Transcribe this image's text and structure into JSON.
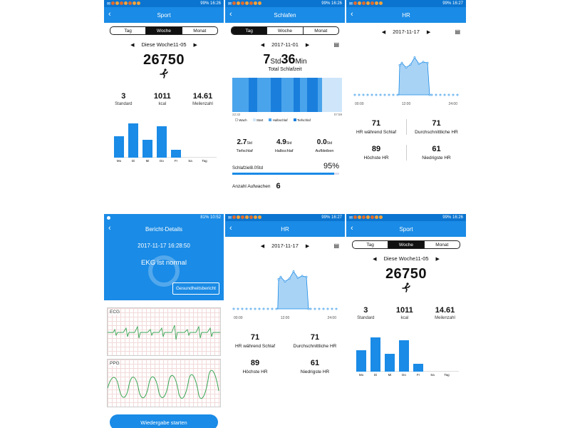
{
  "status": {
    "s1": {
      "battery": "99%",
      "time": "16:26"
    },
    "s2": {
      "battery": "99%",
      "time": "16:26"
    },
    "s3": {
      "battery": "99%",
      "time": "16:27"
    },
    "s4": {
      "battery": "81%",
      "time": "10:52"
    },
    "s5": {
      "battery": "99%",
      "time": "16:27"
    },
    "s6": {
      "battery": "99%",
      "time": "16:26"
    }
  },
  "sport": {
    "title": "Sport",
    "tabs": [
      "Tag",
      "Woche",
      "Monat"
    ],
    "date": "Diese Woche11-05",
    "steps": "26750",
    "stats": [
      {
        "value": "3",
        "label": "Standard"
      },
      {
        "value": "1011",
        "label": "kcal"
      },
      {
        "value": "14.61",
        "label": "Meilenzahl"
      }
    ],
    "week": {
      "days": [
        "Mo",
        "Di",
        "Mi",
        "Do",
        "Fr",
        "Sa",
        "Tag"
      ],
      "values": [
        0.62,
        1.0,
        0.53,
        0.92,
        0.22,
        0,
        0
      ]
    }
  },
  "sleep": {
    "title": "Schlafen",
    "tabs": [
      "Tag",
      "Woche",
      "Monat"
    ],
    "date": "2017-11-01",
    "hours": "7",
    "hours_unit": "Std",
    "minutes": "36",
    "minutes_unit": "Min",
    "total_label": "Total Schlafzeit",
    "time_start": "22:32",
    "time_end": "07:59",
    "legend": [
      "Wach",
      "Start",
      "Halbschlaf",
      "Tiefschlaf"
    ],
    "stats": [
      {
        "value": "2.7",
        "unit": "Std",
        "label": "Tiefschlaf"
      },
      {
        "value": "4.9",
        "unit": "Std",
        "label": "Halbschlaf"
      },
      {
        "value": "0.0",
        "unit": "Std",
        "label": "Aufbleiben"
      }
    ],
    "goal_label": "Schlafziel8.0Std",
    "goal_percent": "95%",
    "goal_progress": 0.95,
    "wake_label": "Anzahl Aufwachen",
    "wake_count": "6"
  },
  "hr": {
    "title": "HR",
    "date": "2017-11-17",
    "times": [
      "00:00",
      "12:00",
      "24:00"
    ],
    "stats": [
      {
        "value": "71",
        "label": "HR während Schlaf"
      },
      {
        "value": "71",
        "label": "Durchschnittliche HR"
      },
      {
        "value": "89",
        "label": "Höchste HR"
      },
      {
        "value": "61",
        "label": "Niedrigste HR"
      }
    ]
  },
  "report": {
    "title": "Bericht-Details",
    "timestamp": "2017-11-17 16:28:50",
    "status": "EKG ist normal",
    "health_button": "Gesundheitsbericht",
    "ecg_label": "ECG",
    "ppg_label": "PPG",
    "play_button": "Wiedergabe starten"
  },
  "colors": {
    "primary": "#1a8be6",
    "statusbar": "#0a74d0",
    "chart_fill": "#a9d3f5",
    "ecg": "#3aa655"
  }
}
